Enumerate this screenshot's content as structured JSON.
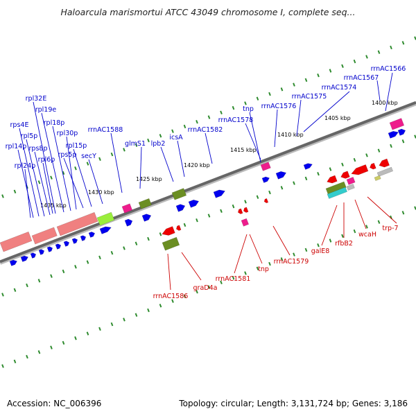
{
  "title": "Haloarcula marismortui ATCC 43049 chromosome I, complete seq...",
  "footer": {
    "accession": "Accession: NC_006396",
    "summary": "Topology: circular; Length: 3,131,724 bp; Genes: 3,186"
  },
  "colors": {
    "backbone": "#666666",
    "tick": "#2e8b2e",
    "forward_gene": "#0000ee",
    "reverse_gene": "#ee0000",
    "rrna": "#ee1c8c",
    "olive": "#6b8e23",
    "salmon": "#f08080",
    "lime": "#9aee3c",
    "forward_label": "#0000cc",
    "reverse_label": "#cc0000"
  },
  "scale_labels": [
    "1400 kbp",
    "1405 kbp",
    "1410 kbp",
    "1415 kbp",
    "1420 kbp",
    "1425 kbp",
    "1430 kbp",
    "1435 kbp"
  ],
  "forward_labels": [
    "rrnAC1566",
    "rrnAC1567",
    "rrnAC1574",
    "rrnAC1575",
    "rrnAC1576",
    "rrnAC1578",
    "tnp",
    "rrnAC1582",
    "icsA",
    "lpb2",
    "glmS1",
    "rrnAC1588",
    "secY",
    "rpl15p",
    "rps5p",
    "rpl30p",
    "rpl18p",
    "rpl19e",
    "rpl32E",
    "rps4E",
    "rpl5p",
    "rps8p",
    "rpl14p",
    "rpl6p",
    "rpl24p"
  ],
  "reverse_labels": [
    "trp-7",
    "wcaH",
    "rfbB2",
    "galE8",
    "rrnAC1579",
    "tnp",
    "rrnAC1581",
    "graD4a",
    "rrnAC1586"
  ]
}
